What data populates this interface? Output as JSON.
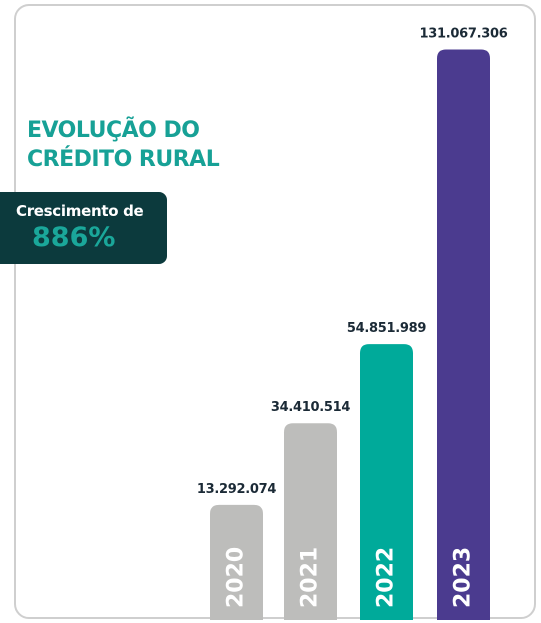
{
  "chart_data": {
    "type": "bar",
    "title": "EVOLUÇÃO DO CRÉDITO RURAL",
    "annotation": {
      "label": "Crescimento de",
      "value": "886%"
    },
    "categories": [
      "2020",
      "2021",
      "2022",
      "2023"
    ],
    "values": [
      13292074,
      34410514,
      54851989,
      131067306
    ],
    "value_labels": [
      "13.292.074",
      "34.410.514",
      "54.851.989",
      "131.067.306"
    ],
    "colors": [
      "#bdbdbb",
      "#bdbdbb",
      "#00aa9a",
      "#4b3b8f"
    ],
    "ylim": [
      -16500000,
      140000000
    ]
  }
}
